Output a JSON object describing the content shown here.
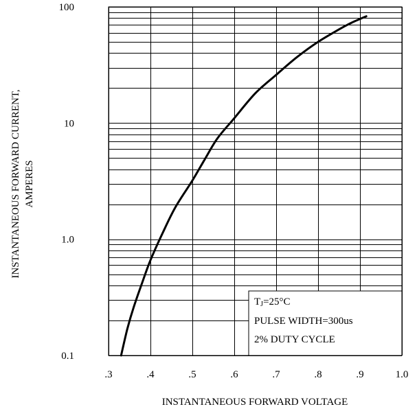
{
  "chart_data": {
    "type": "line",
    "xlabel": "INSTANTANEOUS FORWARD VOLTAGE",
    "ylabel_line1": "INSTANTANEOUS FORWARD CURRENT,",
    "ylabel_line2": "AMPERES",
    "xlim": [
      0.3,
      1.0
    ],
    "ylim": [
      0.1,
      100
    ],
    "y_scale": "log",
    "grid": true,
    "x_ticks": [
      {
        "value": 0.3,
        "label": ".3"
      },
      {
        "value": 0.4,
        "label": ".4"
      },
      {
        "value": 0.5,
        "label": ".5"
      },
      {
        "value": 0.6,
        "label": ".6"
      },
      {
        "value": 0.7,
        "label": ".7"
      },
      {
        "value": 0.8,
        "label": ".8"
      },
      {
        "value": 0.9,
        "label": ".9"
      },
      {
        "value": 1.0,
        "label": "1.0"
      }
    ],
    "y_ticks": [
      {
        "value": 0.1,
        "label": "0.1"
      },
      {
        "value": 1.0,
        "label": "1.0"
      },
      {
        "value": 10,
        "label": "10"
      },
      {
        "value": 100,
        "label": "100"
      }
    ],
    "series": [
      {
        "x": [
          0.33,
          0.345,
          0.36,
          0.38,
          0.4,
          0.43,
          0.46,
          0.5,
          0.53,
          0.56,
          0.6,
          0.65,
          0.7,
          0.75,
          0.8,
          0.85,
          0.88,
          0.915
        ],
        "y": [
          0.1,
          0.17,
          0.26,
          0.42,
          0.66,
          1.15,
          1.9,
          3.2,
          4.9,
          7.4,
          11,
          18,
          26,
          37,
          50,
          64,
          73,
          83
        ]
      }
    ],
    "annotation": {
      "tj_main": "T",
      "tj_sub": "J",
      "tj_rest": "=25°C",
      "line2": "PULSE WIDTH=300us",
      "line3": "2% DUTY CYCLE"
    }
  }
}
